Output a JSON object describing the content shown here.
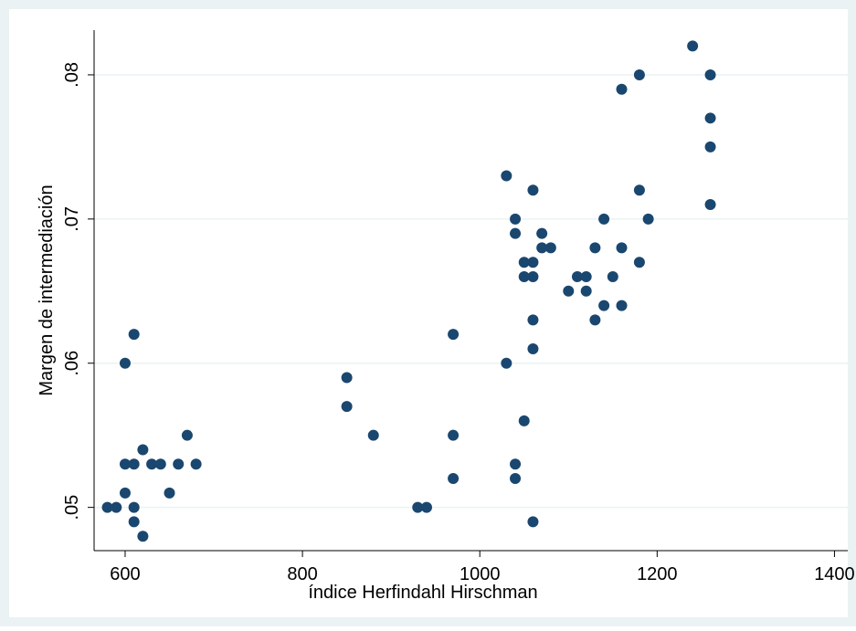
{
  "chart_data": {
    "type": "scatter",
    "xlabel": "índice Herfindahl Hirschman",
    "ylabel": "Margen de intermediación",
    "color": "#1a476f",
    "grid": true,
    "xlim": [
      565,
      1415
    ],
    "ylim": [
      0.047,
      0.0831
    ],
    "xticks": [
      600,
      800,
      1000,
      1200,
      1400
    ],
    "yticks": [
      {
        "value": 0.05,
        "label": ".05"
      },
      {
        "value": 0.06,
        "label": ".06"
      },
      {
        "value": 0.07,
        "label": ".07"
      },
      {
        "value": 0.08,
        "label": ".08"
      }
    ],
    "x": [
      580,
      590,
      600,
      600,
      600,
      610,
      610,
      610,
      610,
      620,
      620,
      630,
      640,
      650,
      660,
      670,
      680,
      850,
      850,
      880,
      930,
      940,
      970,
      970,
      970,
      1030,
      1030,
      1040,
      1040,
      1040,
      1040,
      1050,
      1050,
      1050,
      1060,
      1060,
      1060,
      1060,
      1060,
      1060,
      1070,
      1070,
      1080,
      1100,
      1110,
      1120,
      1120,
      1130,
      1130,
      1140,
      1140,
      1150,
      1160,
      1160,
      1160,
      1180,
      1180,
      1180,
      1190,
      1240,
      1260,
      1260,
      1260,
      1260
    ],
    "values": [
      0.05,
      0.05,
      0.053,
      0.051,
      0.06,
      0.062,
      0.053,
      0.05,
      0.049,
      0.048,
      0.054,
      0.053,
      0.053,
      0.051,
      0.053,
      0.055,
      0.053,
      0.059,
      0.057,
      0.055,
      0.05,
      0.05,
      0.062,
      0.055,
      0.052,
      0.073,
      0.06,
      0.07,
      0.069,
      0.053,
      0.052,
      0.067,
      0.066,
      0.056,
      0.072,
      0.067,
      0.066,
      0.063,
      0.061,
      0.049,
      0.069,
      0.068,
      0.068,
      0.065,
      0.066,
      0.066,
      0.065,
      0.068,
      0.063,
      0.07,
      0.064,
      0.066,
      0.079,
      0.068,
      0.064,
      0.08,
      0.072,
      0.067,
      0.07,
      0.082,
      0.08,
      0.077,
      0.075,
      0.071
    ]
  }
}
